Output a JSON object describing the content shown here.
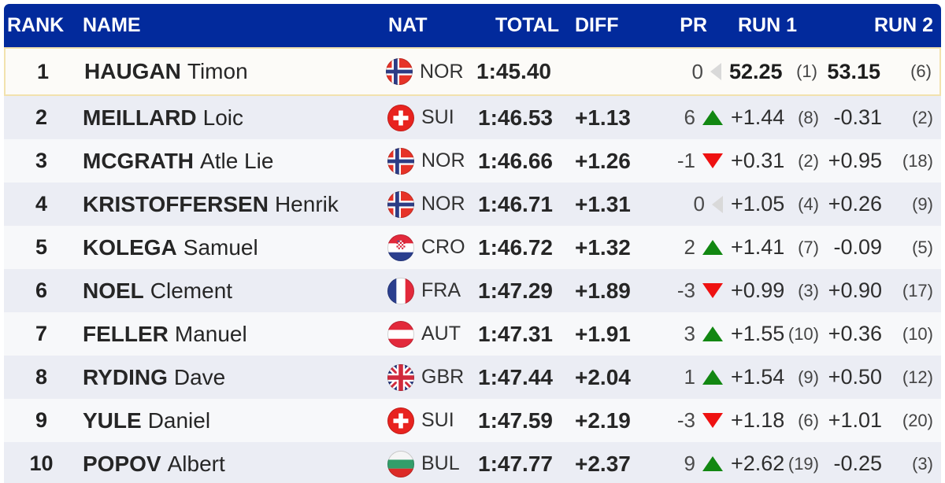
{
  "table": {
    "columns": {
      "rank": "RANK",
      "name": "NAME",
      "nat": "NAT",
      "total": "TOTAL",
      "diff": "DIFF",
      "pr": "PR",
      "run1": "RUN 1",
      "run2": "RUN 2"
    },
    "rows": [
      {
        "rank": "1",
        "last": "HAUGAN",
        "first": "Timon",
        "nat": "NOR",
        "flag_icon": "flag-nor",
        "total": "1:45.40",
        "diff": "",
        "pr": {
          "value": "0",
          "dir": "neutral"
        },
        "run1": {
          "time": "52.25",
          "rank": "(1)"
        },
        "run2": {
          "time": "53.15",
          "rank": "(6)"
        },
        "leader": true
      },
      {
        "rank": "2",
        "last": "MEILLARD",
        "first": "Loic",
        "nat": "SUI",
        "flag_icon": "flag-sui",
        "total": "1:46.53",
        "diff": "+1.13",
        "pr": {
          "value": "6",
          "dir": "up"
        },
        "run1": {
          "time": "+1.44",
          "rank": "(8)"
        },
        "run2": {
          "time": "-0.31",
          "rank": "(2)"
        },
        "leader": false
      },
      {
        "rank": "3",
        "last": "MCGRATH",
        "first": "Atle Lie",
        "nat": "NOR",
        "flag_icon": "flag-nor",
        "total": "1:46.66",
        "diff": "+1.26",
        "pr": {
          "value": "-1",
          "dir": "down"
        },
        "run1": {
          "time": "+0.31",
          "rank": "(2)"
        },
        "run2": {
          "time": "+0.95",
          "rank": "(18)"
        },
        "leader": false
      },
      {
        "rank": "4",
        "last": "KRISTOFFERSEN",
        "first": "Henrik",
        "nat": "NOR",
        "flag_icon": "flag-nor",
        "total": "1:46.71",
        "diff": "+1.31",
        "pr": {
          "value": "0",
          "dir": "neutral"
        },
        "run1": {
          "time": "+1.05",
          "rank": "(4)"
        },
        "run2": {
          "time": "+0.26",
          "rank": "(9)"
        },
        "leader": false
      },
      {
        "rank": "5",
        "last": "KOLEGA",
        "first": "Samuel",
        "nat": "CRO",
        "flag_icon": "flag-cro",
        "total": "1:46.72",
        "diff": "+1.32",
        "pr": {
          "value": "2",
          "dir": "up"
        },
        "run1": {
          "time": "+1.41",
          "rank": "(7)"
        },
        "run2": {
          "time": "-0.09",
          "rank": "(5)"
        },
        "leader": false
      },
      {
        "rank": "6",
        "last": "NOEL",
        "first": "Clement",
        "nat": "FRA",
        "flag_icon": "flag-fra",
        "total": "1:47.29",
        "diff": "+1.89",
        "pr": {
          "value": "-3",
          "dir": "down"
        },
        "run1": {
          "time": "+0.99",
          "rank": "(3)"
        },
        "run2": {
          "time": "+0.90",
          "rank": "(17)"
        },
        "leader": false
      },
      {
        "rank": "7",
        "last": "FELLER",
        "first": "Manuel",
        "nat": "AUT",
        "flag_icon": "flag-aut",
        "total": "1:47.31",
        "diff": "+1.91",
        "pr": {
          "value": "3",
          "dir": "up"
        },
        "run1": {
          "time": "+1.55",
          "rank": "(10)"
        },
        "run2": {
          "time": "+0.36",
          "rank": "(10)"
        },
        "leader": false
      },
      {
        "rank": "8",
        "last": "RYDING",
        "first": "Dave",
        "nat": "GBR",
        "flag_icon": "flag-gbr",
        "total": "1:47.44",
        "diff": "+2.04",
        "pr": {
          "value": "1",
          "dir": "up"
        },
        "run1": {
          "time": "+1.54",
          "rank": "(9)"
        },
        "run2": {
          "time": "+0.50",
          "rank": "(12)"
        },
        "leader": false
      },
      {
        "rank": "9",
        "last": "YULE",
        "first": "Daniel",
        "nat": "SUI",
        "flag_icon": "flag-sui",
        "total": "1:47.59",
        "diff": "+2.19",
        "pr": {
          "value": "-3",
          "dir": "down"
        },
        "run1": {
          "time": "+1.18",
          "rank": "(6)"
        },
        "run2": {
          "time": "+1.01",
          "rank": "(20)"
        },
        "leader": false
      },
      {
        "rank": "10",
        "last": "POPOV",
        "first": "Albert",
        "nat": "BUL",
        "flag_icon": "flag-bul",
        "total": "1:47.77",
        "diff": "+2.37",
        "pr": {
          "value": "9",
          "dir": "up"
        },
        "run1": {
          "time": "+2.62",
          "rank": "(19)"
        },
        "run2": {
          "time": "-0.25",
          "rank": "(3)"
        },
        "leader": false
      }
    ]
  },
  "icons": {
    "pr_up": "pr-up-triangle-icon",
    "pr_down": "pr-down-triangle-icon",
    "pr_neutral": "pr-neutral-triangle-icon"
  },
  "colors": {
    "header_bg": "#022a9c",
    "header_text": "#ffffff",
    "row_bg": "#f7f8fa",
    "row_alt_bg": "#ebedf4",
    "leader_bg": "#fcfbf8",
    "leader_border": "#f2e2ae",
    "gain_green": "#128712",
    "loss_red": "#ee1111",
    "neutral_grey": "#d9d9d9"
  }
}
